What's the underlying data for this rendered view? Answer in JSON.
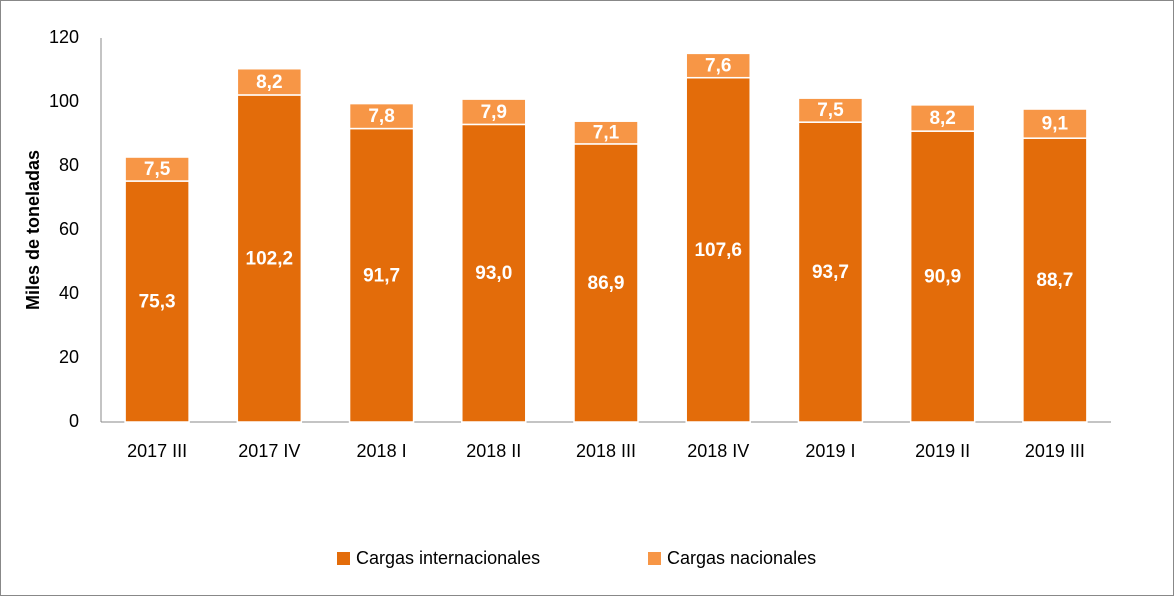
{
  "chart_data": {
    "type": "bar",
    "stacked": true,
    "y_label": "Miles de toneladas",
    "categories": [
      "2017 III",
      "2017 IV",
      "2018 I",
      "2018 II",
      "2018 III",
      "2018 IV",
      "2019 I",
      "2019 II",
      "2019 III"
    ],
    "series": [
      {
        "name": "Cargas internacionales",
        "color": "#e36c0a",
        "values": [
          75.3,
          102.2,
          91.7,
          93.0,
          86.9,
          107.6,
          93.7,
          90.9,
          88.7
        ],
        "value_labels": [
          "75,3",
          "102,2",
          "91,7",
          "93,0",
          "86,9",
          "107,6",
          "93,7",
          "90,9",
          "88,7"
        ]
      },
      {
        "name": "Cargas nacionales",
        "color": "#f79646",
        "values": [
          7.5,
          8.2,
          7.8,
          7.9,
          7.1,
          7.6,
          7.5,
          8.2,
          9.1
        ],
        "value_labels": [
          "7,5",
          "8,2",
          "7,8",
          "7,9",
          "7,1",
          "7,6",
          "7,5",
          "8,2",
          "9,1"
        ]
      }
    ],
    "ylim": [
      0,
      120
    ],
    "yticks": [
      0,
      20,
      40,
      60,
      80,
      100,
      120
    ],
    "grid": false,
    "legend": "bottom"
  }
}
